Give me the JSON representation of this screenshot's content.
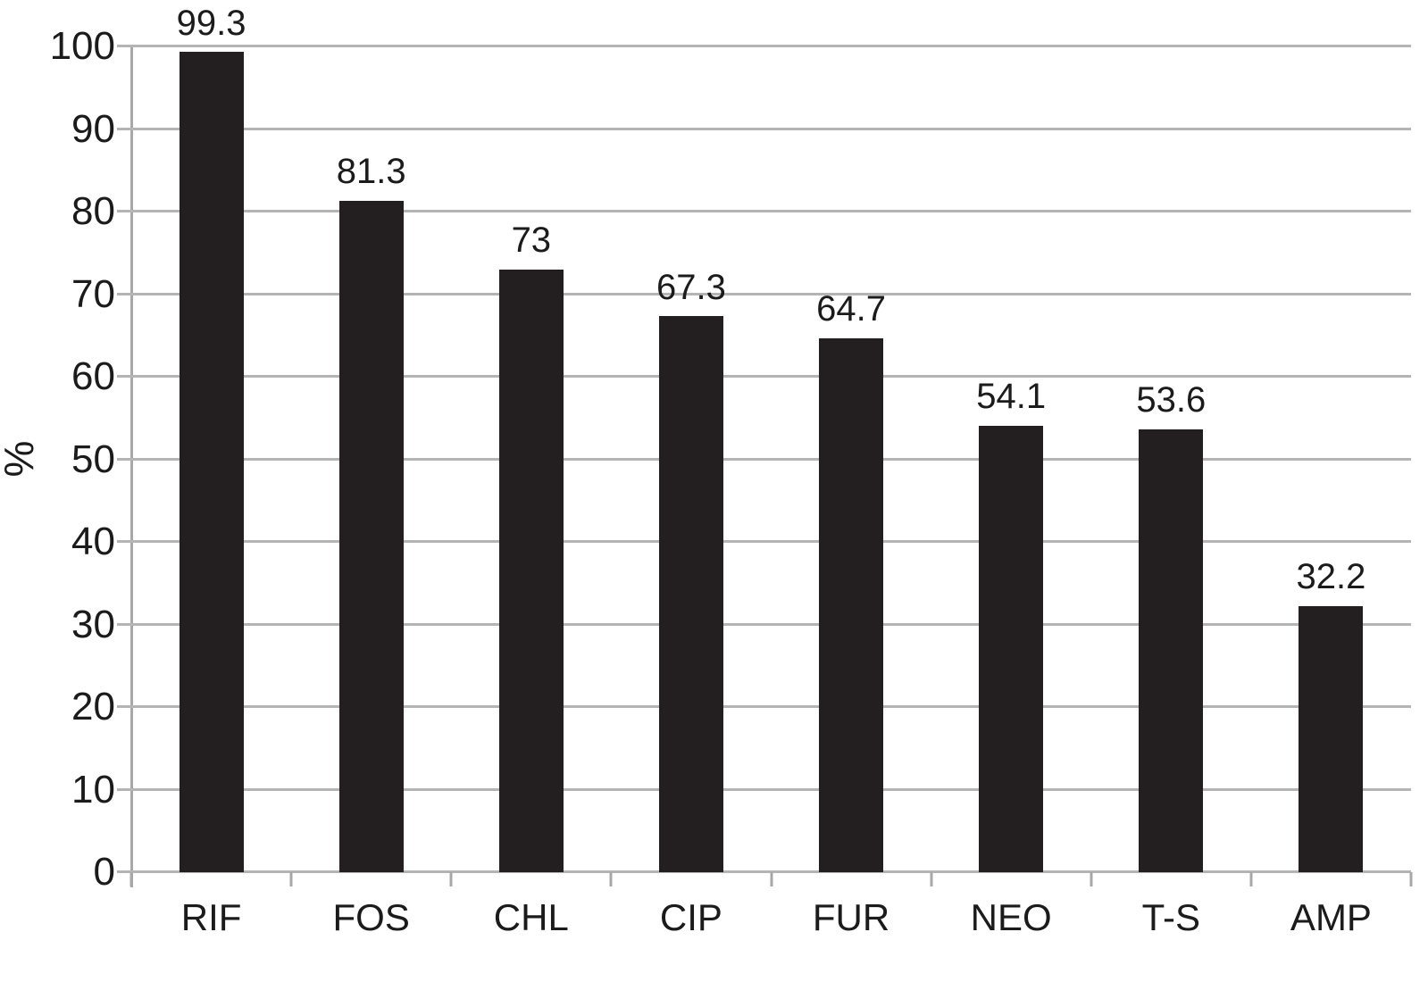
{
  "chart_data": {
    "type": "bar",
    "title": "",
    "xlabel": "",
    "ylabel": "%",
    "categories": [
      "RIF",
      "FOS",
      "CHL",
      "CIP",
      "FUR",
      "NEO",
      "T-S",
      "AMP"
    ],
    "values": [
      99.3,
      81.3,
      73,
      67.3,
      64.7,
      54.1,
      53.6,
      32.2
    ],
    "value_labels": [
      "99.3",
      "81.3",
      "73",
      "67.3",
      "64.7",
      "54.1",
      "53.6",
      "32.2"
    ],
    "ylim": [
      0,
      100
    ],
    "yticks": [
      0,
      10,
      20,
      30,
      40,
      50,
      60,
      70,
      80,
      90,
      100
    ],
    "grid": true,
    "legend": false,
    "colors": {
      "bar": "#231f20",
      "gridline": "#b4b4b4",
      "axis": "#a8a8a8",
      "text": "#1b1b1b",
      "background": "#ffffff"
    }
  }
}
